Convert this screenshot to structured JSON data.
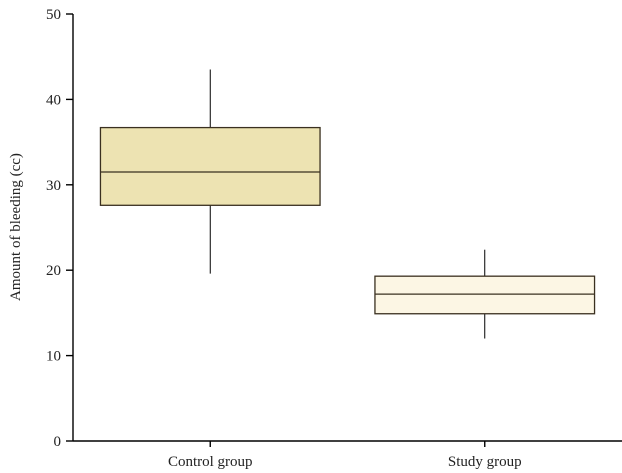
{
  "chart_data": {
    "type": "box",
    "ylabel": "Amount of bleeding (cc)",
    "xlabel": "",
    "ylim": [
      0,
      50
    ],
    "yticks": [
      0,
      10,
      20,
      30,
      40,
      50
    ],
    "grid": false,
    "categories": [
      "Control group",
      "Study group"
    ],
    "boxes": [
      {
        "name": "Control group",
        "min": 19.6,
        "q1": 27.6,
        "median": 31.5,
        "q3": 36.7,
        "max": 43.5,
        "color": "#ede3b2"
      },
      {
        "name": "Study group",
        "min": 12.0,
        "q1": 14.9,
        "median": 17.2,
        "q3": 19.3,
        "max": 22.4,
        "color": "#fcf6e4"
      }
    ]
  }
}
